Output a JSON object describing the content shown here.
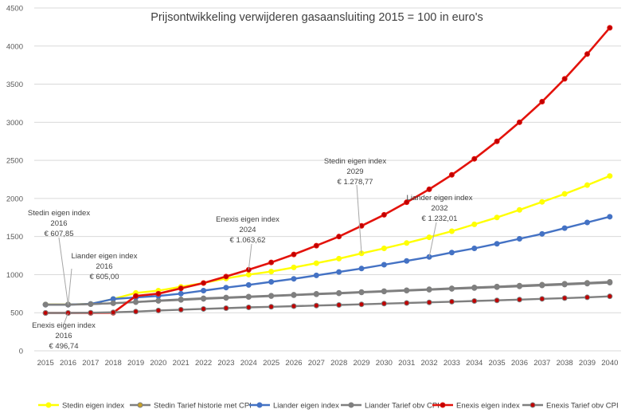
{
  "chart_data": {
    "type": "line",
    "title": "Prijsontwikkeling verwijderen gasaansluiting 2015 = 100 in euro's",
    "xlabel": "",
    "ylabel": "",
    "ylim": [
      0,
      4500
    ],
    "yticks": [
      0,
      500,
      1000,
      1500,
      2000,
      2500,
      3000,
      3500,
      4000,
      4500
    ],
    "categories": [
      "2015",
      "2016",
      "2017",
      "2018",
      "2019",
      "2020",
      "2021",
      "2022",
      "2023",
      "2024",
      "2025",
      "2026",
      "2027",
      "2028",
      "2029",
      "2030",
      "2031",
      "2032",
      "2033",
      "2034",
      "2035",
      "2036",
      "2037",
      "2038",
      "2039",
      "2040"
    ],
    "grid": true,
    "legend_position": "bottom",
    "series": [
      {
        "name": "Stedin eigen index",
        "color": "#FFFF00",
        "marker_fill": "#FFFF00",
        "values": [
          608,
          608,
          615,
          680,
          760,
          790,
          840,
          890,
          950,
          1000,
          1040,
          1095,
          1150,
          1210,
          1279,
          1345,
          1415,
          1490,
          1570,
          1660,
          1750,
          1850,
          1955,
          2060,
          2175,
          2295
        ]
      },
      {
        "name": "Stedin Tarief historie met CPI",
        "color": "#7F7F7F",
        "marker_fill": "#C9A227",
        "values": [
          608,
          608,
          615,
          625,
          640,
          660,
          675,
          690,
          700,
          712,
          724,
          736,
          748,
          760,
          772,
          784,
          796,
          808,
          820,
          832,
          844,
          856,
          868,
          880,
          892,
          905
        ]
      },
      {
        "name": "Liander eigen index",
        "color": "#4472C4",
        "marker_fill": "#4472C4",
        "values": [
          605,
          605,
          615,
          680,
          700,
          720,
          750,
          790,
          830,
          865,
          905,
          945,
          990,
          1035,
          1080,
          1130,
          1180,
          1232,
          1290,
          1345,
          1405,
          1470,
          1535,
          1610,
          1685,
          1760
        ]
      },
      {
        "name": "Liander Tarief obv CPI",
        "color": "#7F7F7F",
        "marker_fill": "#7F7F7F",
        "values": [
          605,
          605,
          612,
          625,
          640,
          655,
          668,
          682,
          694,
          706,
          718,
          730,
          742,
          754,
          766,
          778,
          790,
          802,
          813,
          824,
          835,
          846,
          858,
          870,
          882,
          895
        ]
      },
      {
        "name": "Enexis eigen index",
        "color": "#E3120B",
        "marker_fill": "#C00000",
        "values": [
          497,
          497,
          497,
          500,
          720,
          750,
          820,
          890,
          975,
          1064,
          1160,
          1265,
          1380,
          1500,
          1640,
          1785,
          1950,
          2120,
          2310,
          2520,
          2750,
          3000,
          3270,
          3570,
          3895,
          4240
        ]
      },
      {
        "name": "Enexis Tarief obv CPI",
        "color": "#7F7F7F",
        "marker_fill": "#C00000",
        "values": [
          497,
          497,
          500,
          505,
          515,
          530,
          540,
          550,
          560,
          570,
          578,
          586,
          594,
          602,
          610,
          620,
          628,
          636,
          645,
          654,
          662,
          672,
          682,
          692,
          702,
          715
        ]
      }
    ],
    "annotations": [
      {
        "id": "stedin2016",
        "lines": [
          "Stedin eigen index",
          "2016",
          "€ 607,85"
        ],
        "series": 0,
        "year": "2016"
      },
      {
        "id": "liander2016",
        "lines": [
          "Liander eigen index",
          "2016",
          "€ 605,00"
        ],
        "series": 2,
        "year": "2016"
      },
      {
        "id": "enexis2016",
        "lines": [
          "Enexis eigen index",
          "2016",
          "€ 496,74"
        ],
        "series": 4,
        "year": "2016"
      },
      {
        "id": "enexis2024",
        "lines": [
          "Enexis eigen index",
          "2024",
          "€ 1.063,62"
        ],
        "series": 4,
        "year": "2024"
      },
      {
        "id": "stedin2029",
        "lines": [
          "Stedin eigen index",
          "2029",
          "€ 1.278,77"
        ],
        "series": 0,
        "year": "2029"
      },
      {
        "id": "liander2032",
        "lines": [
          "Liander eigen index",
          "2032",
          "€ 1.232,01"
        ],
        "series": 2,
        "year": "2032"
      }
    ]
  }
}
